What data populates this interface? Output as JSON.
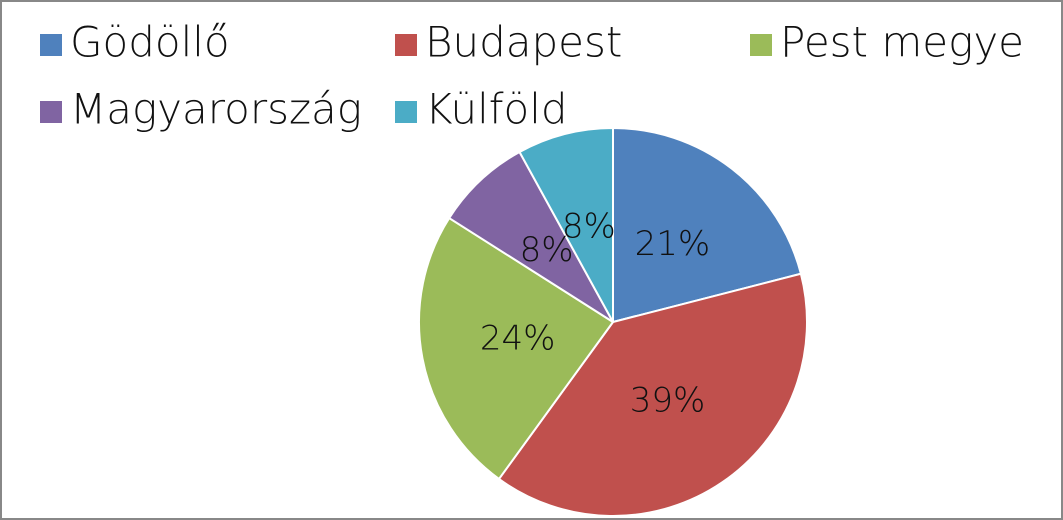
{
  "chart_data": {
    "type": "pie",
    "categories": [
      "Gödöllő",
      "Budapest",
      "Pest megye",
      "Magyarország",
      "Külföld"
    ],
    "values": [
      21,
      39,
      24,
      8,
      8
    ],
    "value_labels": [
      "21%",
      "39%",
      "24%",
      "8%",
      "8%"
    ],
    "colors": [
      "#4f81bd",
      "#c0504d",
      "#9bbb59",
      "#8064a2",
      "#4bacc6"
    ],
    "legend": "top"
  }
}
